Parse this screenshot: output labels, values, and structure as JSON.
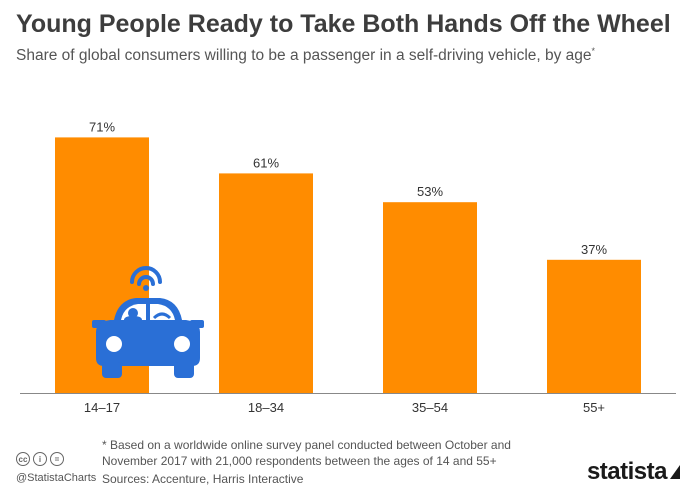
{
  "header": {
    "title": "Young People Ready to Take Both Hands Off the Wheel",
    "subtitle": "Share of global consumers willing to be a passenger in a self-driving vehicle, by age",
    "subtitle_mark": "*"
  },
  "chart_data": {
    "type": "bar",
    "categories": [
      "14–17",
      "18–34",
      "35–54",
      "55+"
    ],
    "values": [
      71,
      61,
      53,
      37
    ],
    "value_labels": [
      "71%",
      "61%",
      "53%",
      "37%"
    ],
    "title": "Young People Ready to Take Both Hands Off the Wheel",
    "subtitle": "Share of global consumers willing to be a passenger in a self-driving vehicle, by age",
    "xlabel": "",
    "ylabel": "",
    "ylim": [
      0,
      80
    ],
    "grid": false,
    "bar_color": "#FF8C00"
  },
  "footer": {
    "footnote_line1": "* Based on a worldwide online survey panel conducted between October and",
    "footnote_line2": "November 2017 with 21,000 respondents between the ages of 14 and 55+",
    "sources": "Sources: Accenture, Harris Interactive",
    "handle": "@StatistaCharts",
    "brand": "statista"
  },
  "icons": {
    "car": "self-driving-car-icon",
    "cc": [
      "cc",
      "i",
      "="
    ]
  },
  "colors": {
    "car_icon": "#2A6FD6",
    "axis": "#888888"
  }
}
